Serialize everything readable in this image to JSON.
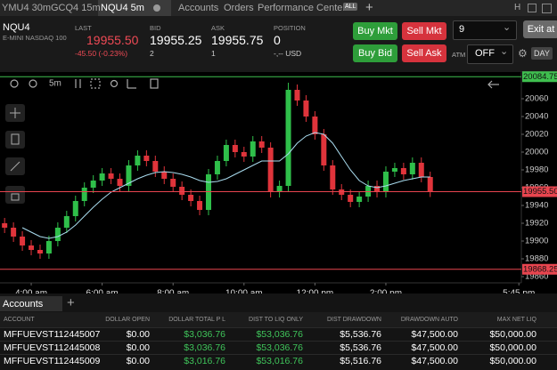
{
  "tabs": [
    "YMU4 30m",
    "GCQ4 15m",
    "NQU4 5m",
    "Accounts",
    "Orders",
    "Performance Center"
  ],
  "all_badge": "ALL",
  "window_icon": "H",
  "quote": {
    "symbol": "NQU4",
    "name": "E-MINI NASDAQ 100",
    "last_label": "LAST",
    "last": "19955.50",
    "change": "-45.50 (-0.23%)",
    "bid_label": "BID",
    "bid": "19955.25",
    "bid_size": "2",
    "ask_label": "ASK",
    "ask": "19955.75",
    "ask_size": "1",
    "position_label": "POSITION",
    "position": "0",
    "pnl": "-,-- USD"
  },
  "order": {
    "buy_mkt": "Buy Mkt",
    "sell_mkt": "Sell Mkt",
    "buy_bid": "Buy Bid",
    "sell_ask": "Sell Ask",
    "quantity": "9",
    "exit": "Exit at",
    "atm_label": "ATM",
    "atm": "OFF",
    "tif": "DAY"
  },
  "chart_toolbar": {
    "interval": "5m"
  },
  "chart_data": {
    "type": "candlestick",
    "x": [
      3.25,
      3.5,
      3.75,
      4,
      4.25,
      4.5,
      4.75,
      5,
      5.25,
      5.5,
      5.75,
      6,
      6.25,
      6.5,
      6.75,
      7,
      7.25,
      7.5,
      7.75,
      8,
      8.25,
      8.5,
      8.75,
      9,
      9.25,
      9.5,
      9.75,
      10,
      10.25,
      10.5,
      10.75,
      11,
      11.25,
      11.5,
      11.75,
      12,
      12.25,
      12.5,
      12.75,
      13,
      13.25,
      13.5,
      13.75,
      14,
      14.25,
      14.5,
      14.75,
      15,
      15.25
    ],
    "open": [
      19920,
      19915,
      19905,
      19895,
      19890,
      19886,
      19900,
      19915,
      19928,
      19945,
      19960,
      19968,
      19976,
      19970,
      19962,
      19985,
      19996,
      19990,
      19978,
      19970,
      19961,
      19952,
      19945,
      19935,
      19975,
      19990,
      20008,
      20000,
      19995,
      20012,
      20005,
      19955,
      19962,
      20070,
      20058,
      20040,
      20020,
      19985,
      19958,
      19952,
      19944,
      19950,
      19962,
      19955,
      19978,
      19982,
      19975,
      19988,
      19972
    ],
    "high": [
      19926,
      19921,
      19911,
      19901,
      19896,
      19906,
      19921,
      19934,
      19951,
      19966,
      19974,
      19982,
      19982,
      19976,
      19991,
      20002,
      20002,
      19996,
      19984,
      19976,
      19967,
      19958,
      19951,
      19981,
      19996,
      20014,
      20014,
      20006,
      20018,
      20018,
      20011,
      19968,
      20078,
      20076,
      20064,
      20046,
      20026,
      19991,
      19964,
      19958,
      19956,
      19968,
      19968,
      19984,
      19988,
      19988,
      19994,
      19994,
      19978
    ],
    "low": [
      19909,
      19899,
      19889,
      19884,
      19880,
      19880,
      19894,
      19909,
      19922,
      19939,
      19954,
      19962,
      19964,
      19956,
      19956,
      19979,
      19984,
      19972,
      19964,
      19955,
      19946,
      19939,
      19929,
      19929,
      19969,
      19984,
      19994,
      19989,
      19989,
      19999,
      19949,
      19949,
      19956,
      20052,
      20034,
      20014,
      19979,
      19952,
      19946,
      19938,
      19938,
      19944,
      19949,
      19949,
      19972,
      19969,
      19969,
      19966,
      19949.5
    ],
    "close": [
      19915,
      19905,
      19895,
      19890,
      19886,
      19900,
      19915,
      19928,
      19945,
      19960,
      19968,
      19976,
      19970,
      19962,
      19985,
      19996,
      19990,
      19978,
      19970,
      19961,
      19952,
      19945,
      19935,
      19975,
      19990,
      20008,
      20000,
      19995,
      20012,
      20005,
      19955,
      19962,
      20070,
      20058,
      20040,
      20020,
      19985,
      19958,
      19952,
      19944,
      19950,
      19962,
      19955,
      19978,
      19982,
      19975,
      19988,
      19972,
      19955.5
    ],
    "up_color": "#2fbf4a",
    "down_color": "#e0343b",
    "line": {
      "color": "#a9dcef",
      "values": [
        null,
        null,
        19915,
        19910,
        19905,
        19903,
        19905,
        19910,
        19918,
        19928,
        19938,
        19947,
        19955,
        19960,
        19965,
        19970,
        19974,
        19977,
        19978,
        19977,
        19975,
        19972,
        19968,
        19966,
        19967,
        19970,
        19975,
        19980,
        19985,
        19990,
        19990,
        19990,
        19998,
        20010,
        20018,
        20022,
        20020,
        20010,
        19995,
        19980,
        19968,
        19962,
        19960,
        19962,
        19965,
        19968,
        19970,
        19972,
        19972
      ]
    },
    "price_lines": [
      {
        "value": 20084.75,
        "label": "20084.75",
        "color": "#3fbf4f"
      },
      {
        "value": 19955.5,
        "label": "19955.50",
        "color": "#e8454f"
      },
      {
        "value": 19868.25,
        "label": "19868.25",
        "color": "#e8454f"
      }
    ],
    "xlim": [
      3.12,
      17.82
    ],
    "xticks": [
      {
        "value": 4,
        "label": "4:00 am"
      },
      {
        "value": 6,
        "label": "6:00 am"
      },
      {
        "value": 8,
        "label": "8:00 am"
      },
      {
        "value": 10,
        "label": "10:00 am"
      },
      {
        "value": 12,
        "label": "12:00 pm"
      },
      {
        "value": 14,
        "label": "2:00 pm"
      },
      {
        "value": 17.75,
        "label": "5:45 pm"
      }
    ],
    "ylim": [
      19853,
      20091
    ],
    "yticks": [
      19860,
      19880,
      19900,
      19920,
      19940,
      19960,
      19980,
      20000,
      20020,
      20040,
      20060
    ]
  },
  "accounts": {
    "title": "Accounts",
    "columns": [
      "ACCOUNT",
      "DOLLAR OPEN",
      "DOLLAR TOTAL P L",
      "DIST TO LIQ ONLY",
      "DIST DRAWDOWN",
      "DRAWDOWN AUTO",
      "MAX NET LIQ"
    ],
    "rows": [
      [
        "MFFUEVST112445007",
        "$0.00",
        "$3,036.76",
        "$53,036.76",
        "$5,536.76",
        "$47,500.00",
        "$50,000.00"
      ],
      [
        "MFFUEVST112445008",
        "$0.00",
        "$3,036.76",
        "$53,036.76",
        "$5,536.76",
        "$47,500.00",
        "$50,000.00"
      ],
      [
        "MFFUEVST112445009",
        "$0.00",
        "$3,016.76",
        "$53,016.76",
        "$5,516.76",
        "$47,500.00",
        "$50,000.00"
      ]
    ]
  }
}
